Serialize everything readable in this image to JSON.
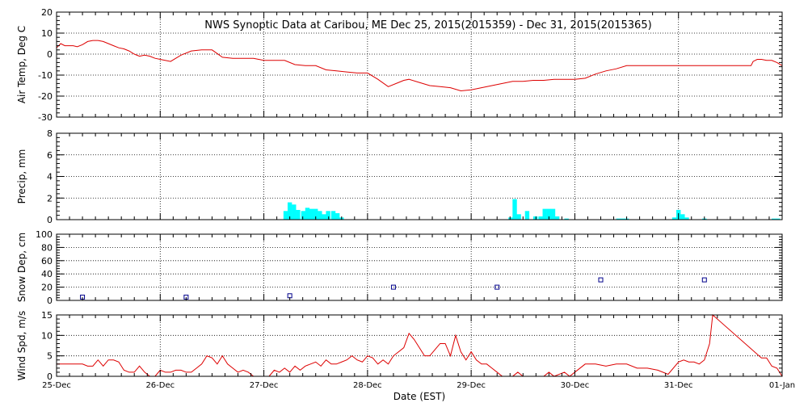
{
  "title": "NWS Synoptic Data at Caribou, ME   Dec 25, 2015(2015359) - Dec 31, 2015(2015365)",
  "xlabel": "Date (EST)",
  "x_ticks": [
    "25-Dec",
    "26-Dec",
    "27-Dec",
    "28-Dec",
    "29-Dec",
    "30-Dec",
    "31-Dec",
    "01-Jan"
  ],
  "colors": {
    "line": "#dd0000",
    "bar": "#00ffff",
    "marker": "#00008b",
    "axis": "#000000"
  },
  "chart_data": [
    {
      "type": "line",
      "ylabel": "Air Temp, Deg C",
      "ylim": [
        -30,
        20
      ],
      "y_ticks": [
        "20",
        "10",
        "0",
        "-10",
        "-20",
        "-30"
      ],
      "y_tick_values": [
        20,
        10,
        0,
        -10,
        -20,
        -30
      ],
      "grid": true,
      "series": [
        {
          "color": "#dd0000",
          "x": [
            0,
            0.04,
            0.08,
            0.12,
            0.16,
            0.2,
            0.25,
            0.3,
            0.35,
            0.4,
            0.45,
            0.5,
            0.55,
            0.6,
            0.65,
            0.7,
            0.75,
            0.8,
            0.85,
            0.9,
            0.95,
            1.0,
            1.1,
            1.2,
            1.3,
            1.4,
            1.5,
            1.6,
            1.7,
            1.8,
            1.9,
            2.0,
            2.1,
            2.2,
            2.3,
            2.4,
            2.5,
            2.6,
            2.7,
            2.8,
            2.9,
            3.0,
            3.1,
            3.2,
            3.3,
            3.35,
            3.4,
            3.5,
            3.6,
            3.7,
            3.8,
            3.9,
            4.0,
            4.1,
            4.2,
            4.3,
            4.4,
            4.5,
            4.6,
            4.7,
            4.8,
            4.9,
            5.0,
            5.1,
            5.2,
            5.3,
            5.4,
            5.5,
            5.6,
            5.7,
            5.8,
            5.9,
            6.0,
            6.2,
            6.4,
            6.6,
            6.7,
            6.72,
            6.76,
            6.8,
            6.85,
            6.9,
            6.95,
            7.0
          ],
          "y": [
            3,
            5,
            4,
            4,
            4,
            3.5,
            4.5,
            6,
            6.5,
            6.5,
            6,
            5,
            4,
            3,
            2.5,
            1.5,
            0,
            -1,
            -0.5,
            -1,
            -2,
            -2.5,
            -3.5,
            -0.5,
            1.5,
            2,
            2,
            -1.5,
            -2,
            -2,
            -2,
            -3,
            -3,
            -3,
            -5,
            -5.5,
            -5.5,
            -7.5,
            -8,
            -8.5,
            -9,
            -9,
            -12,
            -15.5,
            -13.5,
            -12.5,
            -12,
            -13.5,
            -15,
            -15.5,
            -16,
            -17.5,
            -17,
            -16,
            -15,
            -14,
            -13,
            -13,
            -12.5,
            -12.5,
            -12,
            -12,
            -12,
            -11.5,
            -9.5,
            -8,
            -7,
            -5.5,
            -5.5,
            -5.5,
            -5.5,
            -5.5,
            -5.5,
            -5.5,
            -5.5,
            -5.5,
            -5.5,
            -3.5,
            -2.5,
            -2.5,
            -3,
            -3,
            -4,
            -5.5
          ]
        }
      ]
    },
    {
      "type": "bar",
      "ylabel": "Precip, mm",
      "ylim": [
        0,
        8
      ],
      "y_ticks": [
        "8",
        "6",
        "4",
        "2",
        "0"
      ],
      "y_tick_values": [
        8,
        6,
        4,
        2,
        0
      ],
      "grid": true,
      "bar_width": 0.042,
      "x": [
        2.21,
        2.25,
        2.29,
        2.33,
        2.38,
        2.42,
        2.46,
        2.5,
        2.54,
        2.58,
        2.62,
        2.67,
        2.71,
        2.75,
        4.38,
        4.42,
        4.46,
        4.54,
        4.62,
        4.67,
        4.71,
        4.75,
        4.79,
        4.83,
        4.92,
        5.42,
        5.46,
        5.5,
        5.96,
        6.0,
        6.04,
        6.08,
        6.25,
        6.92,
        6.96
      ],
      "values": [
        0.8,
        1.6,
        1.4,
        0.9,
        0.8,
        1.1,
        1.0,
        1.0,
        0.8,
        0.5,
        0.8,
        0.8,
        0.6,
        0.2,
        0.2,
        1.9,
        0.5,
        0.8,
        0.3,
        0.3,
        1.0,
        1.0,
        1.0,
        0.3,
        0.1,
        0.1,
        0.1,
        0.1,
        0.2,
        0.9,
        0.5,
        0.2,
        0.1,
        0.1,
        0.1
      ],
      "color": "#00ffff"
    },
    {
      "type": "scatter",
      "ylabel": "Snow Dep, cm",
      "ylim": [
        0,
        100
      ],
      "y_ticks": [
        "100",
        "80",
        "60",
        "40",
        "20",
        "0"
      ],
      "y_tick_values": [
        100,
        80,
        60,
        40,
        20,
        0
      ],
      "grid": true,
      "marker": "square",
      "x": [
        0.25,
        1.25,
        2.25,
        3.25,
        4.25,
        5.25,
        6.25
      ],
      "y": [
        5,
        5,
        7,
        20,
        20,
        31,
        31
      ],
      "color": "#00008b"
    },
    {
      "type": "line",
      "ylabel": "Wind Spd, m/s",
      "ylim": [
        0,
        15
      ],
      "y_ticks": [
        "15",
        "10",
        "5",
        "0"
      ],
      "y_tick_values": [
        15,
        10,
        5,
        0
      ],
      "grid": true,
      "series": [
        {
          "color": "#dd0000",
          "x": [
            0,
            0.1,
            0.2,
            0.25,
            0.3,
            0.35,
            0.4,
            0.45,
            0.5,
            0.55,
            0.6,
            0.65,
            0.7,
            0.75,
            0.8,
            0.85,
            0.9,
            0.95,
            1.0,
            1.05,
            1.1,
            1.15,
            1.2,
            1.25,
            1.3,
            1.35,
            1.4,
            1.45,
            1.5,
            1.55,
            1.6,
            1.65,
            1.7,
            1.75,
            1.8,
            1.85,
            1.9,
            1.95,
            2.0,
            2.05,
            2.1,
            2.15,
            2.2,
            2.25,
            2.3,
            2.35,
            2.4,
            2.45,
            2.5,
            2.55,
            2.6,
            2.65,
            2.7,
            2.75,
            2.8,
            2.85,
            2.9,
            2.95,
            3.0,
            3.05,
            3.1,
            3.15,
            3.2,
            3.25,
            3.3,
            3.35,
            3.4,
            3.45,
            3.5,
            3.55,
            3.6,
            3.65,
            3.7,
            3.75,
            3.8,
            3.85,
            3.9,
            3.95,
            4.0,
            4.05,
            4.1,
            4.15,
            4.2,
            4.25,
            4.3,
            4.35,
            4.4,
            4.45,
            4.5,
            4.55,
            4.6,
            4.65,
            4.7,
            4.75,
            4.8,
            4.85,
            4.9,
            4.95,
            5.0,
            5.1,
            5.2,
            5.3,
            5.4,
            5.5,
            5.6,
            5.7,
            5.8,
            5.9,
            6.0,
            6.05,
            6.1,
            6.15,
            6.2,
            6.25,
            6.3,
            6.33,
            6.8,
            6.85,
            6.9,
            6.95,
            7.0
          ],
          "y": [
            3,
            3,
            3,
            3,
            2.5,
            2.5,
            4,
            2.5,
            4,
            4,
            3.5,
            1.5,
            1,
            1,
            2.5,
            1,
            0,
            0,
            1.5,
            1,
            1,
            1.5,
            1.5,
            1,
            1,
            2,
            3,
            5,
            4.5,
            3,
            5,
            3,
            2,
            1,
            1.5,
            1,
            0,
            0,
            0,
            0,
            1.5,
            1,
            2,
            1,
            2.5,
            1.5,
            2.5,
            3,
            3.5,
            2.5,
            4,
            3,
            3,
            3.5,
            4,
            5,
            4,
            3.5,
            5,
            4.5,
            3,
            4,
            3,
            5,
            6,
            7,
            10.5,
            9,
            7,
            5,
            5,
            6.5,
            8,
            8,
            5,
            10,
            6,
            4,
            6,
            4,
            3,
            3,
            2,
            1,
            0,
            0,
            0,
            1,
            0,
            0,
            0,
            0,
            0,
            1,
            0,
            0.5,
            1,
            0,
            1,
            3,
            3,
            2.5,
            3,
            3,
            2,
            2,
            1.5,
            0.5,
            3.5,
            4,
            3.5,
            3.5,
            3,
            4,
            8,
            15,
            4.5,
            4.5,
            2.5,
            2,
            0
          ]
        }
      ]
    }
  ]
}
